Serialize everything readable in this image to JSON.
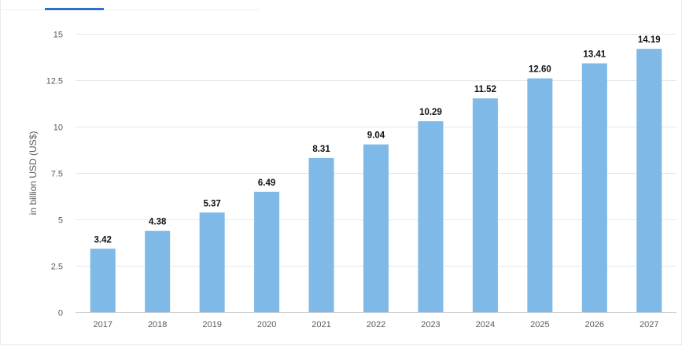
{
  "colors": {
    "bar": "#7eb9e8",
    "grid": "#e4e7eb",
    "axis": "#c9ced4",
    "tab_accent": "#2f6fcf"
  },
  "chart_data": {
    "type": "bar",
    "categories": [
      "2017",
      "2018",
      "2019",
      "2020",
      "2021",
      "2022",
      "2023",
      "2024",
      "2025",
      "2026",
      "2027"
    ],
    "values": [
      3.42,
      4.38,
      5.37,
      6.49,
      8.31,
      9.04,
      10.29,
      11.52,
      12.6,
      13.41,
      14.19
    ],
    "data_labels": [
      "3.42",
      "4.38",
      "5.37",
      "6.49",
      "8.31",
      "9.04",
      "10.29",
      "11.52",
      "12.60",
      "13.41",
      "14.19"
    ],
    "title": "",
    "xlabel": "",
    "ylabel": "in billion USD (US$)",
    "ylim": [
      0,
      15
    ],
    "yticks": [
      0,
      2.5,
      5,
      7.5,
      10,
      12.5,
      15
    ],
    "ytick_labels": [
      "0",
      "2.5",
      "5",
      "7.5",
      "10",
      "12.5",
      "15"
    ],
    "grid": true,
    "legend": "none"
  }
}
